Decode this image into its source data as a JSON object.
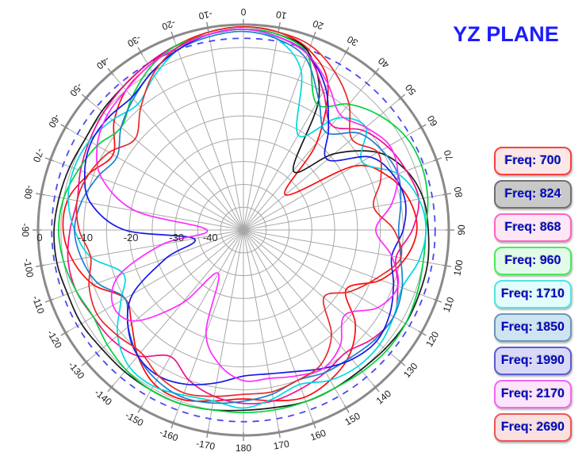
{
  "title": {
    "text": "YZ PLANE",
    "color": "#1C1CFF"
  },
  "legend": {
    "text_color": "#0008BE",
    "items": [
      {
        "freq": "700",
        "label": "Freq: 700",
        "border": "#F84040",
        "fill": "#FCE7E7"
      },
      {
        "freq": "824",
        "label": "Freq: 824",
        "border": "#707070",
        "fill": "#C9C9C9"
      },
      {
        "freq": "868",
        "label": "Freq: 868",
        "border": "#FF64C0",
        "fill": "#FFE6F4"
      },
      {
        "freq": "960",
        "label": "Freq: 960",
        "border": "#4CE85C",
        "fill": "#E2FBE9"
      },
      {
        "freq": "1710",
        "label": "Freq: 1710",
        "border": "#52E4E4",
        "fill": "#E2FDFD"
      },
      {
        "freq": "1850",
        "label": "Freq: 1850",
        "border": "#6A96BE",
        "fill": "#CFE4F1"
      },
      {
        "freq": "1990",
        "label": "Freq: 1990",
        "border": "#5C5CCE",
        "fill": "#D8D8F8"
      },
      {
        "freq": "2170",
        "label": "Freq: 2170",
        "border": "#F266F2",
        "fill": "#FDE4FB"
      },
      {
        "freq": "2690",
        "label": "Freq: 2690",
        "border": "#F05454",
        "fill": "#FBE0E0"
      }
    ]
  },
  "chart_data": {
    "type": "line",
    "subtype": "polar-radiation-pattern",
    "title": "YZ PLANE",
    "angle_unit": "degrees",
    "angle_zero_position": "top",
    "angle_direction": "clockwise",
    "angle_tick_step_deg": 10,
    "angle_tick_labels": [
      "0",
      "10",
      "20",
      "30",
      "40",
      "50",
      "60",
      "70",
      "80",
      "90",
      "100",
      "110",
      "120",
      "130",
      "140",
      "150",
      "160",
      "170",
      "180",
      "-170",
      "-160",
      "-150",
      "-140",
      "-130",
      "-120",
      "-110",
      "-100",
      "-90",
      "-80",
      "-70",
      "-60",
      "-50",
      "-40",
      "-30",
      "-20",
      "-10"
    ],
    "radial_unit": "dB",
    "radial_tick_labels_db": [
      0,
      -10,
      -20,
      -30,
      -40
    ],
    "radial_ring_step_db": 5,
    "radial_center_db": -45,
    "reference_dashed_circle_db": -3,
    "reference_dashed_color": "#4A4AEF",
    "grid": true,
    "grid_color": "#A8A8A8",
    "outer_ring_color": "#8A8A8A",
    "legend_position": "right",
    "angles_deg": [
      -180,
      -170,
      -160,
      -150,
      -140,
      -130,
      -120,
      -110,
      -100,
      -90,
      -80,
      -70,
      -60,
      -50,
      -40,
      -30,
      -20,
      -10,
      0,
      10,
      20,
      30,
      40,
      50,
      60,
      70,
      80,
      90,
      100,
      110,
      120,
      130,
      140,
      150,
      160,
      170
    ],
    "series": [
      {
        "name": "Freq: 700",
        "freq": 700,
        "color": "#FF0A0A",
        "db": [
          -8,
          -7,
          -5.5,
          -6,
          -9,
          -13,
          -15,
          -10,
          -7,
          -5.5,
          -6,
          -9,
          -12,
          -8,
          -5,
          -3.5,
          -2,
          -1,
          -0.5,
          -1,
          -3,
          -8,
          -20,
          -33,
          -17,
          -11,
          -8,
          -7,
          -9,
          -13,
          -19,
          -13,
          -9,
          -7,
          -6,
          -7
        ]
      },
      {
        "name": "Freq: 824",
        "freq": 824,
        "color": "#1A1A1A",
        "db": [
          -5.5,
          -5,
          -4.5,
          -4.5,
          -4.5,
          -4.5,
          -4,
          -4,
          -3.5,
          -3.5,
          -4,
          -4.5,
          -5,
          -4.5,
          -4,
          -3,
          -2,
          -1.5,
          -1,
          -1.5,
          -3.5,
          -12,
          -28,
          -19,
          -11,
          -7,
          -5,
          -4.5,
          -4,
          -4,
          -4,
          -4.5,
          -5,
          -5,
          -5,
          -5.5
        ]
      },
      {
        "name": "Freq: 868",
        "freq": 868,
        "color": "#EE1090",
        "db": [
          -7,
          -8,
          -10,
          -13,
          -9,
          -7.5,
          -7,
          -6,
          -6,
          -7,
          -8,
          -7,
          -6,
          -5,
          -4,
          -3,
          -2,
          -1.5,
          -1,
          -2,
          -4,
          -10,
          -15,
          -11,
          -8.5,
          -7,
          -6,
          -8,
          -11,
          -9,
          -7,
          -8,
          -10,
          -9,
          -8,
          -7
        ]
      },
      {
        "name": "Freq: 960",
        "freq": 960,
        "color": "#00D23C",
        "db": [
          -5,
          -5,
          -4.5,
          -4.5,
          -5,
          -6,
          -7,
          -6,
          -5,
          -4.5,
          -5,
          -6.5,
          -8,
          -10,
          -7,
          -4,
          -2,
          -1.5,
          -1,
          -1.5,
          -4,
          -13,
          -9,
          -6,
          -4,
          -3.5,
          -4,
          -5,
          -5,
          -4.5,
          -4,
          -4,
          -4.5,
          -5,
          -5,
          -5
        ]
      },
      {
        "name": "Freq: 1710",
        "freq": 1710,
        "color": "#00D9E0",
        "db": [
          -6,
          -7,
          -6.5,
          -5.5,
          -6,
          -9,
          -14,
          -17,
          -11,
          -8,
          -6,
          -5.5,
          -6,
          -7.5,
          -9,
          -6,
          -3,
          -1.5,
          -1,
          -2.5,
          -8,
          -21,
          -13,
          -10,
          -15,
          -9,
          -6,
          -5,
          -6,
          -8,
          -7,
          -6,
          -6,
          -7,
          -9,
          -7.5
        ]
      },
      {
        "name": "Freq: 1850",
        "freq": 1850,
        "color": "#1F7FD0",
        "db": [
          -7.5,
          -6.5,
          -6,
          -7,
          -9,
          -12,
          -15,
          -11,
          -9,
          -8,
          -9,
          -11,
          -13,
          -10,
          -7.5,
          -5,
          -3,
          -2,
          -1.5,
          -2.5,
          -5,
          -12,
          -17,
          -12,
          -10,
          -9,
          -10,
          -11,
          -10,
          -8,
          -7,
          -7.5,
          -8.5,
          -9,
          -10,
          -8.5
        ]
      },
      {
        "name": "Freq: 1990",
        "freq": 1990,
        "color": "#1717E8",
        "db": [
          -13,
          -11,
          -9,
          -8,
          -9,
          -12,
          -17,
          -27,
          -34,
          -19,
          -11,
          -8,
          -6.5,
          -6.5,
          -7,
          -5,
          -3,
          -1.5,
          -1,
          -2,
          -4,
          -9,
          -16,
          -21,
          -13,
          -10,
          -9,
          -10,
          -12,
          -10,
          -8,
          -7,
          -8,
          -10,
          -12,
          -13
        ]
      },
      {
        "name": "Freq: 2170",
        "freq": 2170,
        "color": "#FF2BFF",
        "db": [
          -12,
          -15,
          -21,
          -34,
          -24,
          -14,
          -12,
          -16,
          -27,
          -37,
          -21,
          -12,
          -8,
          -6,
          -5,
          -3.5,
          -2.5,
          -1.5,
          -1,
          -2,
          -4,
          -8,
          -12,
          -10,
          -8,
          -9,
          -12,
          -16,
          -12,
          -9,
          -11,
          -16,
          -12,
          -10,
          -11,
          -12
        ]
      },
      {
        "name": "Freq: 2690",
        "freq": 2690,
        "color": "#E62B2B",
        "db": [
          -9,
          -8,
          -7,
          -8,
          -10,
          -9,
          -8,
          -9,
          -11,
          -9,
          -8,
          -9,
          -11,
          -14,
          -10,
          -5.5,
          -2.5,
          -1,
          -0.5,
          -1,
          -2,
          -5,
          -9,
          -14,
          -11,
          -13,
          -16,
          -12,
          -10,
          -14,
          -18,
          -22,
          -15,
          -11,
          -10,
          -9
        ]
      }
    ]
  }
}
